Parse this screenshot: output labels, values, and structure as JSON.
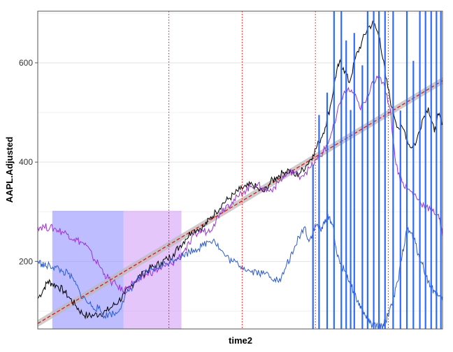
{
  "chart_data": {
    "type": "line",
    "title": "",
    "xlabel": "time2",
    "ylabel": "AAPL.Adjusted",
    "x_range": [
      0,
      100
    ],
    "ylim": [
      64,
      704
    ],
    "y_ticks": [
      200,
      400,
      600
    ],
    "y_minor_ticks": [
      100,
      300,
      500,
      700
    ],
    "grid": true,
    "legend": "none",
    "vertical_lines": {
      "color": "#ff0000",
      "style": "dotted",
      "x": [
        32.4,
        50.5,
        68.6,
        86.6
      ]
    },
    "shaded_regions": [
      {
        "x_start": 3.6,
        "x_end": 21.2,
        "y_start": 64,
        "y_end": 302,
        "color": "#7b7bff",
        "opacity": 0.5
      },
      {
        "x_start": 21.2,
        "x_end": 35.5,
        "y_start": 64,
        "y_end": 302,
        "color": "#c98ef5",
        "opacity": 0.5
      }
    ],
    "trend": {
      "color": "#ff0000",
      "band_color": "#bbbbbb",
      "x": [
        0,
        100
      ],
      "y": [
        75,
        564
      ],
      "band_halfwidth": 7
    },
    "series": [
      {
        "color": "#000000",
        "x": [
          0,
          1.5,
          2.5,
          3.6,
          5,
          6.5,
          8,
          9.5,
          11,
          12.5,
          14,
          15.5,
          17,
          18.5,
          20,
          21.5,
          23,
          24.5,
          26,
          27.5,
          29,
          30.5,
          32,
          33.5,
          35,
          36.5,
          38,
          39.5,
          41,
          42.5,
          44,
          45.5,
          47,
          48.5,
          50,
          51.5,
          53,
          54.5,
          56,
          57.5,
          59,
          60.5,
          62,
          63.5,
          65,
          66.5,
          68,
          69.5,
          71,
          72.5,
          73.5,
          74.5,
          75.5,
          77,
          78.5,
          80,
          81.5,
          83,
          84.5,
          86,
          87.5,
          89,
          90.5,
          92,
          93.5,
          95,
          96.5,
          98,
          99,
          100
        ],
        "y": [
          125,
          145,
          160,
          155,
          150,
          140,
          125,
          110,
          95,
          90,
          92,
          95,
          100,
          110,
          120,
          135,
          150,
          165,
          175,
          185,
          190,
          198,
          205,
          215,
          230,
          245,
          260,
          265,
          270,
          285,
          300,
          315,
          325,
          335,
          345,
          350,
          355,
          345,
          340,
          360,
          370,
          378,
          385,
          372,
          380,
          395,
          415,
          440,
          470,
          520,
          570,
          600,
          590,
          560,
          610,
          640,
          670,
          680,
          650,
          570,
          510,
          470,
          465,
          430,
          440,
          485,
          510,
          460,
          495,
          480
        ]
      },
      {
        "color": "#9b30d9",
        "x": [
          0,
          1.5,
          3,
          4.5,
          6,
          7.5,
          9,
          10.5,
          12,
          13.5,
          15,
          16.5,
          18,
          19.5,
          21,
          22.5,
          24,
          25.5,
          27,
          28.5,
          30,
          31.5,
          33,
          34.5,
          36,
          37.5,
          39,
          40.5,
          42,
          43.5,
          45,
          46.5,
          48,
          49.5,
          51,
          52.5,
          54,
          55.5,
          57,
          58.5,
          60,
          61.5,
          63,
          64.5,
          66,
          67.5,
          69,
          70.5,
          72,
          73.5,
          75,
          76.5,
          78,
          79.5,
          81,
          82.5,
          84,
          85.5,
          87,
          88.5,
          90,
          91.5,
          93,
          94.5,
          96,
          97.5,
          99,
          100
        ],
        "y": [
          270,
          270,
          268,
          265,
          260,
          255,
          245,
          240,
          232,
          210,
          195,
          175,
          160,
          152,
          140,
          150,
          160,
          162,
          175,
          180,
          185,
          190,
          195,
          205,
          220,
          235,
          255,
          262,
          260,
          275,
          298,
          312,
          320,
          330,
          342,
          350,
          355,
          348,
          342,
          350,
          365,
          375,
          382,
          372,
          378,
          390,
          405,
          420,
          445,
          480,
          530,
          545,
          540,
          510,
          520,
          560,
          570,
          560,
          510,
          395,
          360,
          345,
          335,
          320,
          310,
          302,
          295,
          250
        ]
      },
      {
        "color": "#2a5bd8",
        "x": [
          0,
          1,
          2,
          3,
          4.5,
          6,
          7.5,
          9,
          10.5,
          12,
          13.5,
          15,
          16.5,
          18,
          19.5,
          21,
          22.5,
          24,
          25.5,
          27,
          28.5,
          30,
          31.5,
          33,
          34.5,
          36,
          37.5,
          39,
          40.5,
          42,
          43.5,
          45,
          46.5,
          48,
          49.5,
          51,
          52.5,
          54,
          55.5,
          57,
          58.5,
          60,
          61.5,
          63,
          64.5,
          66,
          67,
          68,
          69,
          70,
          71,
          72,
          73,
          74,
          75,
          76,
          77,
          78,
          79,
          80,
          81,
          82,
          83,
          84,
          85,
          86,
          87,
          88,
          89,
          90,
          91,
          92,
          93,
          94,
          95,
          96,
          97,
          98,
          99,
          100
        ],
        "y": [
          200,
          195,
          190,
          192,
          188,
          180,
          175,
          160,
          135,
          120,
          110,
          105,
          90,
          95,
          95,
          120,
          140,
          158,
          170,
          178,
          185,
          190,
          195,
          202,
          208,
          212,
          220,
          225,
          230,
          240,
          245,
          225,
          210,
          200,
          195,
          188,
          180,
          180,
          175,
          175,
          165,
          160,
          195,
          215,
          250,
          270,
          240,
          260,
          275,
          260,
          285,
          290,
          270,
          210,
          190,
          180,
          160,
          140,
          120,
          105,
          90,
          75,
          70,
          68,
          70,
          80,
          105,
          130,
          160,
          210,
          260,
          260,
          245,
          215,
          195,
          170,
          150,
          140,
          130,
          120
        ]
      },
      {
        "color": "#2e6bff",
        "style": "spikes",
        "x": [
          68.0,
          69.5,
          71.5,
          73.2,
          75.0,
          76.2,
          77.3,
          78.2,
          80.2,
          81.5,
          83.0,
          84.3,
          85.8,
          87.8,
          89.6,
          91.2,
          92.8,
          94.4,
          95.8,
          97.2,
          98.5,
          99.6
        ],
        "low": [
          64,
          64,
          64,
          64,
          64,
          64,
          64,
          64,
          64,
          64,
          64,
          64,
          64,
          64,
          64,
          64,
          64,
          64,
          64,
          64,
          64,
          64
        ],
        "high": [
          395,
          495,
          540,
          704,
          704,
          645,
          505,
          660,
          595,
          704,
          704,
          704,
          704,
          704,
          504,
          704,
          604,
          704,
          704,
          704,
          704,
          704
        ]
      }
    ]
  }
}
